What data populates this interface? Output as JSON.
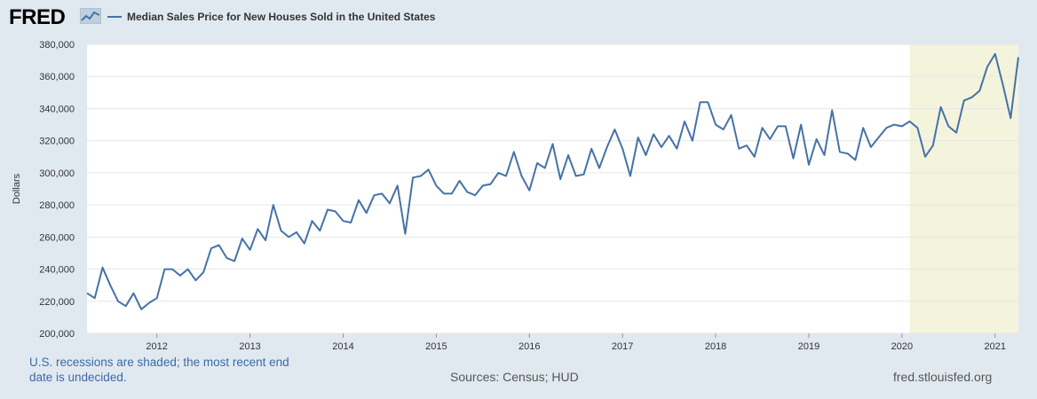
{
  "header": {
    "logo_text": "FRED",
    "legend_label": "Median Sales Price for New Houses Sold in the United States",
    "series_color": "#4572a7"
  },
  "chart_data": {
    "type": "line",
    "title": "Median Sales Price for New Houses Sold in the United States",
    "xlabel": "",
    "ylabel": "Dollars",
    "ylim": [
      200000,
      380000
    ],
    "y_ticks": [
      200000,
      220000,
      240000,
      260000,
      280000,
      300000,
      320000,
      340000,
      360000,
      380000
    ],
    "y_tick_labels": [
      "200,000",
      "220,000",
      "240,000",
      "260,000",
      "280,000",
      "300,000",
      "320,000",
      "340,000",
      "360,000",
      "380,000"
    ],
    "x_start": "2011-04",
    "x_end": "2021-04",
    "x_ticks": [
      "2012",
      "2013",
      "2014",
      "2015",
      "2016",
      "2017",
      "2018",
      "2019",
      "2020",
      "2021"
    ],
    "grid": true,
    "recession_shading": {
      "start": "2020-02",
      "end": "2021-04",
      "color": "#f4f4dc"
    },
    "series": [
      {
        "name": "Median Sales Price for New Houses Sold in the United States",
        "color": "#4572a7",
        "start": "2011-04",
        "values": [
          225000,
          222000,
          241000,
          230000,
          220000,
          217000,
          225000,
          215000,
          219000,
          222000,
          240000,
          240000,
          236000,
          240000,
          233000,
          238000,
          253000,
          255000,
          247000,
          245000,
          259000,
          252000,
          265000,
          258000,
          280000,
          264000,
          260000,
          263000,
          256000,
          270000,
          264000,
          277000,
          276000,
          270000,
          269000,
          283000,
          275000,
          286000,
          287000,
          281000,
          292000,
          262000,
          297000,
          298000,
          302000,
          292000,
          287000,
          287000,
          295000,
          288000,
          286000,
          292000,
          293000,
          300000,
          298000,
          313000,
          298000,
          289000,
          306000,
          303000,
          318000,
          296000,
          311000,
          298000,
          299000,
          315000,
          303000,
          316000,
          327000,
          315000,
          298000,
          322000,
          311000,
          324000,
          316000,
          323000,
          315000,
          332000,
          320000,
          344000,
          344000,
          330000,
          327000,
          336000,
          315000,
          317000,
          310000,
          328000,
          321000,
          329000,
          329000,
          309000,
          330000,
          305000,
          321000,
          311000,
          339000,
          313000,
          312000,
          308000,
          328000,
          316000,
          322000,
          328000,
          330000,
          329000,
          332000,
          328000,
          310000,
          317000,
          341000,
          329000,
          325000,
          345000,
          347000,
          351000,
          366000,
          374000,
          355000,
          334000,
          372000
        ]
      }
    ]
  },
  "footer": {
    "recession_note": "U.S. recessions are shaded; the most recent end date is undecided.",
    "sources": "Sources: Census; HUD",
    "url": "fred.stlouisfed.org"
  }
}
